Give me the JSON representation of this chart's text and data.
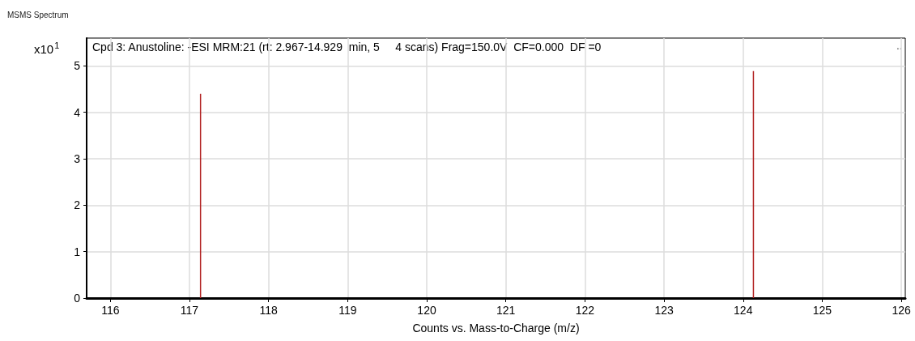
{
  "chart_data": {
    "type": "bar",
    "title": "MSMS Spectrum",
    "xlabel": "Counts vs. Mass-to-Charge (m/z)",
    "ylabel": "x10$^{1}$",
    "annotations": [
      "Cpd 3: Anustoline: -ESI MRM:21 (rt: 2.967-14.929  min, 5     4 scans) Frag=150.0V  CF=0.000  DF =0",
      ".."
    ],
    "x": [
      117.14,
      124.13
    ],
    "series": [
      {
        "color": "#b22222",
        "values": [
          4.4,
          4.89
        ]
      }
    ],
    "xlim": [
      115.7,
      126.05
    ],
    "xticks": [
      116,
      117,
      118,
      119,
      120,
      121,
      122,
      123,
      124,
      125,
      126
    ],
    "ylim": [
      0,
      5.6
    ],
    "yticks": [
      0,
      1,
      2,
      3,
      4,
      5
    ],
    "grid": true
  }
}
